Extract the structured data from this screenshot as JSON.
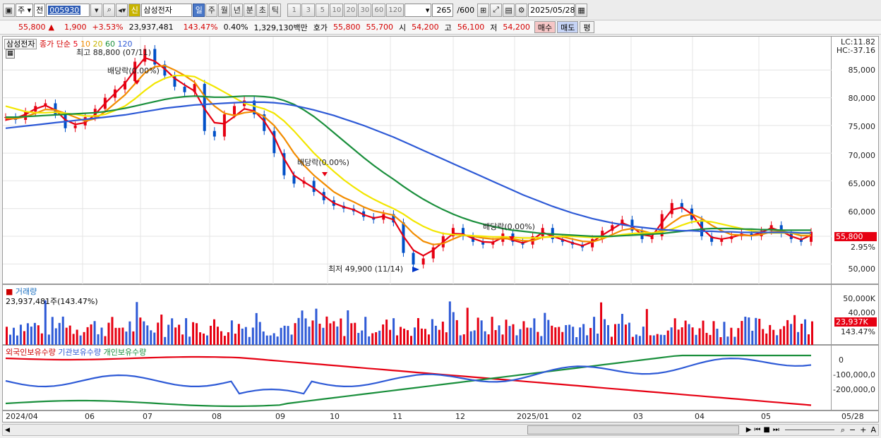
{
  "toolbar": {
    "market": "주",
    "scope": "전",
    "code": "005930",
    "name": "삼성전자",
    "new_label": "신",
    "periods": [
      "일",
      "주",
      "월",
      "년",
      "분",
      "초",
      "틱"
    ],
    "numbers": [
      "1",
      "3",
      "5",
      "10",
      "20",
      "30",
      "60",
      "120"
    ],
    "count": "265",
    "count_total": "/600",
    "date": "2025/05/28"
  },
  "quote": {
    "price": "55,800",
    "up_arrow": "▲",
    "change": "1,900",
    "change_pct": "+3.53%",
    "volume": "23,937,481",
    "volume_ratio": "143.47%",
    "turnover_pct": "0.40%",
    "amount": "1,329,130백만",
    "hoga_label": "호가",
    "ask": "55,800",
    "bid": "55,700",
    "open_label": "시",
    "open": "54,200",
    "high_label": "고",
    "high": "56,100",
    "low_label": "저",
    "low": "54,200",
    "buy": "매수",
    "sell": "매도",
    "eval": "평"
  },
  "price_panel": {
    "stock_label": "삼성전자",
    "legend_title": "종가 단순",
    "ma_periods": [
      "5",
      "10",
      "20",
      "60",
      "120"
    ],
    "ma_colors": [
      "#e60012",
      "#f28c00",
      "#f2e600",
      "#1a8f3c",
      "#2e5ad6"
    ],
    "high_note": "최고 88,800 (07/11)",
    "low_note": "최저 49,900 (11/14)",
    "dividend_note": "배당락(0.00%)",
    "lc": "LC:11.82",
    "hc": "HC:-37.16",
    "y_labels": [
      "85,000",
      "80,000",
      "75,000",
      "70,000",
      "65,000",
      "60,000",
      "55,000",
      "50,000"
    ],
    "last_price": "55,800",
    "last_pct": "2.95%"
  },
  "volume_panel": {
    "title": "거래량",
    "value": "23,937,481주(143.47%)",
    "y_labels": [
      "50,000K",
      "40,000"
    ],
    "last_value": "23,937K",
    "last_pct": "143.47%"
  },
  "holding_panel": {
    "foreign": "외국인보유수량",
    "institution": "기관보유수량",
    "individual": "개인보유수량",
    "y_labels": [
      "0",
      "-100,000,0",
      "-200,000,0"
    ]
  },
  "x_labels": [
    "2024/04",
    "06",
    "07",
    "08",
    "09",
    "10",
    "11",
    "12",
    "2025/01",
    "02",
    "03",
    "04",
    "05",
    "05/28"
  ],
  "chart_data": {
    "type": "line",
    "series": [
      {
        "name": "종가",
        "values": [
          76500,
          76000,
          77500,
          78500,
          79000,
          77000,
          74500,
          75000,
          76500,
          78000,
          80000,
          81500,
          83000,
          86500,
          88800,
          86000,
          84000,
          82000,
          81000,
          82500,
          74000,
          73000,
          77000,
          78500,
          79500,
          77000,
          74000,
          70000,
          66000,
          64500,
          65000,
          63000,
          61500,
          60500,
          60000,
          59500,
          58500,
          58000,
          59000,
          57500,
          52000,
          49900,
          51000,
          53000,
          55000,
          56500,
          55000,
          54000,
          53500,
          54000,
          55500,
          54000,
          53500,
          55000,
          56500,
          54500,
          54000,
          53500,
          53000,
          54500,
          56000,
          57000,
          58000,
          56000,
          54500,
          55000,
          59000,
          61000,
          60000,
          58000,
          55000,
          54000,
          54500,
          55000,
          55500,
          55000,
          56000,
          57000,
          55500,
          54500,
          54000,
          55800
        ]
      },
      {
        "name": "5",
        "values": [
          76000,
          76300,
          77000,
          78000,
          78600,
          77800,
          76000,
          75200,
          75500,
          77000,
          79000,
          80800,
          82600,
          85000,
          87200,
          86600,
          85200,
          83500,
          82300,
          81200,
          78000,
          75500,
          75300,
          76600,
          78000,
          77600,
          75800,
          73000,
          69000,
          66000,
          64800,
          63700,
          62300,
          61000,
          60300,
          59800,
          58900,
          58300,
          58600,
          58000,
          55000,
          52500,
          51500,
          52500,
          54000,
          55500,
          55400,
          54600,
          54000,
          53900,
          54800,
          54300,
          53800,
          54400,
          55700,
          55000,
          54400,
          53800,
          53300,
          54000,
          55200,
          56300,
          57400,
          56700,
          55300,
          55000,
          57500,
          59800,
          60200,
          59000,
          56500,
          54800,
          54500,
          54800,
          55300,
          55100,
          55700,
          56500,
          55900,
          55000,
          54400,
          55200
        ]
      },
      {
        "name": "10",
        "values": [
          76300,
          76200,
          76600,
          77200,
          77900,
          77800,
          77200,
          76500,
          75800,
          76200,
          77500,
          79000,
          80500,
          82500,
          84500,
          85600,
          85800,
          85000,
          84000,
          82800,
          80300,
          78500,
          77200,
          76800,
          77300,
          77500,
          76600,
          75000,
          72700,
          70000,
          67800,
          66000,
          64500,
          63000,
          62000,
          61200,
          60300,
          59600,
          59200,
          58800,
          57300,
          55500,
          54100,
          53500,
          53700,
          54500,
          55200,
          55000,
          54700,
          54500,
          54600,
          54500,
          54200,
          54200,
          54800,
          55000,
          54900,
          54500,
          54100,
          54000,
          54500,
          55300,
          56100,
          56400,
          56000,
          55500,
          56100,
          57400,
          58600,
          59000,
          58200,
          57000,
          56000,
          55300,
          55200,
          55100,
          55300,
          55800,
          55900,
          55600,
          55100,
          55100
        ]
      },
      {
        "name": "20",
        "values": [
          78500,
          78000,
          77500,
          77300,
          77300,
          77400,
          77200,
          77000,
          76700,
          76700,
          77000,
          77700,
          78500,
          79800,
          81300,
          82600,
          83500,
          84000,
          84000,
          83800,
          82900,
          82000,
          81000,
          80000,
          79000,
          78500,
          78000,
          77200,
          75800,
          74000,
          72000,
          70000,
          68300,
          66700,
          65200,
          63900,
          62700,
          61700,
          60800,
          60000,
          59000,
          57800,
          56800,
          56000,
          55500,
          55300,
          55200,
          55100,
          55000,
          54900,
          54900,
          54800,
          54700,
          54700,
          54800,
          54900,
          55000,
          55000,
          54900,
          54800,
          54800,
          55000,
          55300,
          55500,
          55600,
          55600,
          55800,
          56300,
          57000,
          57600,
          57800,
          57600,
          57200,
          56800,
          56400,
          56000,
          55700,
          55600,
          55600,
          55600,
          55500,
          55500
        ]
      },
      {
        "name": "60",
        "values": [
          76500,
          76500,
          76600,
          76700,
          76800,
          76900,
          77000,
          77100,
          77200,
          77300,
          77500,
          77800,
          78100,
          78500,
          78900,
          79300,
          79700,
          80000,
          80200,
          80300,
          80200,
          80100,
          80100,
          80200,
          80300,
          80300,
          80200,
          80000,
          79500,
          78800,
          77800,
          76600,
          75200,
          73700,
          72200,
          70700,
          69200,
          67800,
          66500,
          65300,
          64000,
          62800,
          61700,
          60700,
          59800,
          59000,
          58300,
          57700,
          57200,
          56800,
          56400,
          56100,
          55900,
          55700,
          55500,
          55400,
          55300,
          55200,
          55100,
          55000,
          55000,
          55000,
          55100,
          55200,
          55300,
          55400,
          55500,
          55700,
          55900,
          56100,
          56300,
          56400,
          56400,
          56400,
          56300,
          56300,
          56200,
          56200,
          56100,
          56100,
          56100,
          56100
        ]
      },
      {
        "name": "120",
        "values": [
          74500,
          74700,
          74900,
          75100,
          75300,
          75500,
          75700,
          75900,
          76100,
          76300,
          76500,
          76700,
          76900,
          77200,
          77500,
          77800,
          78100,
          78300,
          78500,
          78700,
          78800,
          78900,
          79000,
          79100,
          79200,
          79200,
          79200,
          79100,
          78900,
          78600,
          78200,
          77800,
          77300,
          76800,
          76200,
          75600,
          75000,
          74300,
          73600,
          72900,
          72100,
          71300,
          70500,
          69700,
          68900,
          68100,
          67300,
          66500,
          65700,
          64900,
          64100,
          63300,
          62500,
          61800,
          61100,
          60400,
          59800,
          59200,
          58700,
          58200,
          57800,
          57400,
          57100,
          56800,
          56600,
          56400,
          56200,
          56100,
          56000,
          56000,
          55900,
          55900,
          55800,
          55800,
          55700,
          55700,
          55700,
          55700,
          55700,
          55700,
          55600,
          55600
        ]
      }
    ],
    "ylim": [
      48000,
      90000
    ]
  }
}
